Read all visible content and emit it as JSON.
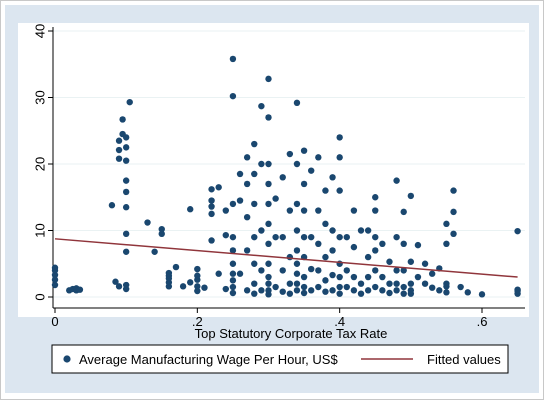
{
  "chart_data": {
    "type": "scatter",
    "xlabel": "Top Statutory Corporate Tax Rate",
    "ylabel": "",
    "xlim": [
      -0.01,
      0.66
    ],
    "ylim": [
      -1,
      40
    ],
    "xticks": [
      0,
      0.2,
      0.4,
      0.6
    ],
    "xtick_labels": [
      "0",
      ".2",
      ".4",
      ".6"
    ],
    "yticks": [
      0,
      10,
      20,
      30,
      40
    ],
    "ytick_labels": [
      "0",
      "10",
      "20",
      "30",
      "40"
    ],
    "grid": "horizontal",
    "legend_position": "bottom",
    "series": [
      {
        "name": "Average Manufacturing Wage Per Hour, US$",
        "kind": "scatter",
        "color": "#1a476f",
        "x": [
          0,
          0,
          0,
          0,
          0,
          0.02,
          0.025,
          0.03,
          0.03,
          0.035,
          0.08,
          0.085,
          0.09,
          0.09,
          0.09,
          0.09,
          0.095,
          0.095,
          0.1,
          0.1,
          0.1,
          0.1,
          0.1,
          0.1,
          0.1,
          0.1,
          0.1,
          0.1,
          0.105,
          0.13,
          0.14,
          0.15,
          0.15,
          0.16,
          0.16,
          0.16,
          0.16,
          0.16,
          0.17,
          0.18,
          0.19,
          0.19,
          0.2,
          0.2,
          0.2,
          0.2,
          0.2,
          0.21,
          0.22,
          0.22,
          0.22,
          0.22,
          0.22,
          0.23,
          0.23,
          0.24,
          0.24,
          0.24,
          0.25,
          0.25,
          0.25,
          0.25,
          0.25,
          0.25,
          0.25,
          0.25,
          0.25,
          0.25,
          0.26,
          0.26,
          0.26,
          0.27,
          0.27,
          0.27,
          0.27,
          0.27,
          0.28,
          0.28,
          0.28,
          0.28,
          0.28,
          0.28,
          0.28,
          0.29,
          0.29,
          0.29,
          0.29,
          0.29,
          0.3,
          0.3,
          0.3,
          0.3,
          0.3,
          0.3,
          0.3,
          0.3,
          0.3,
          0.3,
          0.3,
          0.3,
          0.31,
          0.31,
          0.31,
          0.32,
          0.32,
          0.32,
          0.32,
          0.33,
          0.33,
          0.33,
          0.33,
          0.33,
          0.34,
          0.34,
          0.34,
          0.34,
          0.34,
          0.34,
          0.34,
          0.34,
          0.34,
          0.35,
          0.35,
          0.35,
          0.35,
          0.35,
          0.35,
          0.35,
          0.35,
          0.36,
          0.36,
          0.36,
          0.36,
          0.37,
          0.37,
          0.37,
          0.37,
          0.37,
          0.38,
          0.38,
          0.38,
          0.38,
          0.38,
          0.39,
          0.39,
          0.39,
          0.39,
          0.39,
          0.4,
          0.4,
          0.4,
          0.4,
          0.4,
          0.4,
          0.4,
          0.4,
          0.41,
          0.41,
          0.41,
          0.42,
          0.42,
          0.42,
          0.42,
          0.43,
          0.43,
          0.43,
          0.44,
          0.44,
          0.44,
          0.44,
          0.45,
          0.45,
          0.45,
          0.45,
          0.45,
          0.45,
          0.46,
          0.46,
          0.46,
          0.47,
          0.47,
          0.47,
          0.48,
          0.48,
          0.48,
          0.48,
          0.48,
          0.49,
          0.49,
          0.49,
          0.49,
          0.49,
          0.5,
          0.5,
          0.5,
          0.5,
          0.5,
          0.51,
          0.51,
          0.52,
          0.52,
          0.53,
          0.53,
          0.54,
          0.54,
          0.55,
          0.55,
          0.55,
          0.55,
          0.55,
          0.56,
          0.56,
          0.56,
          0.57,
          0.58,
          0.6,
          0.65,
          0.65,
          0.65,
          0.65
        ],
        "y": [
          1.8,
          2.6,
          3.3,
          4.0,
          4.4,
          1.0,
          1.2,
          1.0,
          1.3,
          1.1,
          13.8,
          2.3,
          1.6,
          20.8,
          22.1,
          23.5,
          24.5,
          26.7,
          1.2,
          1.8,
          6.8,
          9.5,
          13.5,
          15.8,
          17.5,
          20.5,
          22.5,
          24,
          29.3,
          11.2,
          6.8,
          9.5,
          10.2,
          1.6,
          2.2,
          2.8,
          3.2,
          3.6,
          4.5,
          1.6,
          2.2,
          13.2,
          0.9,
          1.6,
          2.6,
          3.2,
          4.2,
          1.4,
          8.5,
          12.5,
          13.6,
          16.2,
          14.5,
          3.5,
          16.5,
          1.2,
          9.3,
          13,
          0.6,
          1.5,
          2.5,
          3.5,
          5,
          7,
          9,
          14,
          30.2,
          35.8,
          3.5,
          14.5,
          18.5,
          1,
          7,
          12,
          17,
          21,
          0.5,
          2,
          5,
          9,
          14,
          18.5,
          23,
          1,
          4,
          10,
          20,
          28.7,
          0.4,
          1,
          2,
          3,
          5,
          8,
          11,
          14,
          17,
          20,
          27,
          32.8,
          1.5,
          9,
          14.8,
          0.8,
          4,
          9,
          18,
          0.5,
          2,
          6,
          13,
          21.5,
          1,
          2,
          3.5,
          5,
          7,
          10,
          14,
          20,
          29.2,
          0.6,
          1.5,
          3,
          6,
          9,
          13,
          17,
          22,
          1,
          4.2,
          9,
          19,
          1.5,
          4,
          8,
          13,
          21,
          0.8,
          2.5,
          6,
          11,
          16,
          1,
          3.3,
          7,
          10,
          18,
          0.5,
          1.5,
          3,
          5,
          9,
          16,
          21,
          24,
          1.5,
          4,
          9,
          1,
          3,
          7.5,
          13,
          0.5,
          2,
          10,
          1,
          3,
          6,
          10,
          1.5,
          4,
          7,
          9,
          13,
          15,
          1,
          3,
          8,
          0.6,
          2,
          5.3,
          1,
          2,
          4,
          9,
          17.5,
          0.5,
          1.5,
          4,
          8,
          12.8,
          0.5,
          1,
          2,
          5.3,
          15.2,
          7.8,
          3,
          2,
          5,
          1.4,
          3.5,
          4.3,
          1,
          2,
          0.7,
          1.6,
          8,
          11,
          16,
          12.8,
          9.5,
          1.5,
          0.7,
          0.4,
          0.5,
          0.9,
          1.1,
          9.9
        ]
      },
      {
        "name": "Fitted values",
        "kind": "line",
        "color": "#90353b",
        "x": [
          0,
          0.65
        ],
        "y": [
          8.75,
          3.0
        ]
      }
    ]
  }
}
